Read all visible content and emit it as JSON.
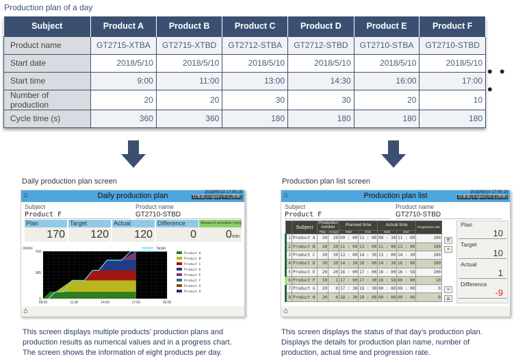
{
  "title": "Production plan of a day",
  "plan_table": {
    "header": [
      "Subject",
      "Product A",
      "Product B",
      "Product C",
      "Product D",
      "Product E",
      "Product F"
    ],
    "rows": [
      {
        "label": "Product name",
        "cells": [
          "GT2715-XTBA",
          "GT2715-XTBD",
          "GT2712-STBA",
          "GT2712-STBD",
          "GT2710-STBA",
          "GT2710-STBD"
        ],
        "align": "c"
      },
      {
        "label": "Start date",
        "cells": [
          "2018/5/10",
          "2018/5/10",
          "2018/5/10",
          "2018/5/10",
          "2018/5/10",
          "2018/5/10"
        ]
      },
      {
        "label": "Start time",
        "cells": [
          "9:00",
          "11:00",
          "13:00",
          "14:30",
          "16:00",
          "17:00"
        ]
      },
      {
        "label": "Number of production",
        "cells": [
          "20",
          "20",
          "30",
          "30",
          "20",
          "10"
        ]
      },
      {
        "label": "Cycle time (s)",
        "cells": [
          "360",
          "360",
          "180",
          "180",
          "180",
          "180"
        ]
      }
    ],
    "more": "• • •"
  },
  "daily": {
    "caption": "Daily production plan screen",
    "title": "Daily production plan",
    "datetime": "2018/05/10  17:05:15",
    "buttons": [
      "日本語",
      "English",
      "中文(简体)"
    ],
    "subject_label": "Subject",
    "subject": "Product F",
    "product_label": "Product name",
    "product": "GT2710-STBD",
    "kpis": [
      {
        "label": "Plan",
        "value": "170"
      },
      {
        "label": "Target",
        "value": "120"
      },
      {
        "label": "Actual",
        "value": "120"
      },
      {
        "label": "Difference",
        "value": "0"
      }
    ],
    "ahead_label": "Ahead of schedule  (min)",
    "ahead_value": "0",
    "ahead_unit": "min",
    "description": [
      "This screen displays multiple products' production plans and",
      "production results as numerical values and in a progress chart.",
      "The screen shows the information of eight products per day."
    ],
    "chart_data": {
      "type": "area",
      "ylabel": "(Units)",
      "ylim": [
        0,
        700
      ],
      "yticks": [
        "0",
        "385",
        "700"
      ],
      "xticks": [
        "08:00",
        "11:00",
        "14:00",
        "17:00",
        "20:00"
      ],
      "xlim_hours": [
        8,
        20
      ],
      "grid": true,
      "target": {
        "name": "Target",
        "color": "#6fd0e8",
        "points": [
          [
            8.5,
            0
          ],
          [
            9.2,
            100
          ],
          [
            10,
            100
          ],
          [
            10.8,
            270
          ],
          [
            12,
            270
          ],
          [
            12.8,
            420
          ],
          [
            13.4,
            420
          ],
          [
            14.2,
            570
          ],
          [
            15.6,
            570
          ],
          [
            16.5,
            700
          ],
          [
            20,
            700
          ]
        ]
      },
      "series": [
        {
          "name": "Product A",
          "color": "#2e7d1e",
          "top": [
            [
              8,
              0
            ],
            [
              8.7,
              100
            ],
            [
              17,
              100
            ]
          ]
        },
        {
          "name": "Product B",
          "color": "#b8b81e",
          "top": [
            [
              8,
              0
            ],
            [
              8.7,
              100
            ],
            [
              9.2,
              100
            ],
            [
              10.8,
              270
            ],
            [
              17,
              270
            ]
          ]
        },
        {
          "name": "Product C",
          "color": "#a0160e",
          "top": [
            [
              8,
              0
            ],
            [
              8.7,
              100
            ],
            [
              9.2,
              100
            ],
            [
              10.8,
              270
            ],
            [
              12,
              270
            ],
            [
              12.8,
              420
            ],
            [
              17,
              420
            ]
          ]
        },
        {
          "name": "Product D",
          "color": "#1f3c8a",
          "top": [
            [
              8,
              0
            ],
            [
              8.7,
              100
            ],
            [
              9.2,
              100
            ],
            [
              10.8,
              270
            ],
            [
              12,
              270
            ],
            [
              12.8,
              420
            ],
            [
              13.4,
              420
            ],
            [
              14.2,
              570
            ],
            [
              17,
              570
            ]
          ]
        },
        {
          "name": "Product E",
          "color": "#7a3a78",
          "top": [
            [
              8,
              0
            ],
            [
              8.7,
              100
            ],
            [
              9.2,
              100
            ],
            [
              10.8,
              270
            ],
            [
              12,
              270
            ],
            [
              12.8,
              420
            ],
            [
              13.4,
              420
            ],
            [
              14.2,
              570
            ],
            [
              15.6,
              570
            ],
            [
              16.3,
              640
            ],
            [
              17,
              700
            ],
            [
              17,
              700
            ]
          ]
        },
        {
          "name": "Product F",
          "color": "#2e6a8c",
          "top": []
        },
        {
          "name": "Product G",
          "color": "#8a4a10",
          "top": []
        },
        {
          "name": "Product H",
          "color": "#3a2670",
          "top": []
        }
      ]
    }
  },
  "list": {
    "caption": "Production plan list screen",
    "title": "Production plan list",
    "datetime": "2018/05/10  17:05:15",
    "buttons": [
      "日本語",
      "English",
      "中文(简体)"
    ],
    "subject_label": "Subject",
    "subject": "Product F",
    "product_label": "Product name",
    "product": "GT2710-STBD",
    "headers": {
      "subject": "Subject",
      "prod": "Production number",
      "plan": "Plan",
      "actual": "Actual",
      "planned": "Planned time",
      "actual_time": "Actual time",
      "start": "Start",
      "end": "End",
      "rate": "Progression rate"
    },
    "rows": [
      [
        "1",
        "Product A",
        "20",
        "20",
        "09 : 00",
        "11 : 00",
        "08 : 30",
        "11 : 00",
        "100"
      ],
      [
        "2",
        "Product B",
        "20",
        "20",
        "11 : 00",
        "13 : 00",
        "11 : 00",
        "13 : 00",
        "100"
      ],
      [
        "3",
        "Product C",
        "30",
        "30",
        "13 : 00",
        "14 : 30",
        "13 : 00",
        "14 : 30",
        "100"
      ],
      [
        "4",
        "Product D",
        "30",
        "30",
        "14 : 30",
        "16 : 00",
        "14 : 30",
        "16 : 00",
        "100"
      ],
      [
        "5",
        "Product E",
        "20",
        "20",
        "16 : 00",
        "17 : 00",
        "16 : 00",
        "16 : 58",
        "100"
      ],
      [
        "6",
        "Product F",
        "10",
        "1",
        "17 : 00",
        "17 : 30",
        "16 : 58",
        "00 : 00",
        "10"
      ],
      [
        "7",
        "Product G",
        "20",
        "0",
        "17 : 30",
        "18 : 30",
        "00 : 00",
        "00 : 00",
        "0"
      ],
      [
        "8",
        "Product H",
        "20",
        "0",
        "18 : 30",
        "19 : 00",
        "00 : 00",
        "00 : 00",
        "0"
      ]
    ],
    "side": [
      {
        "label": "Plan",
        "value": "10"
      },
      {
        "label": "Target",
        "value": "10"
      },
      {
        "label": "Actual",
        "value": "1"
      },
      {
        "label": "Difference",
        "value": "-9",
        "color": "#e02020"
      }
    ],
    "description": [
      "This screen displays the status of that day's production plan.",
      "Displays the details for production plan name, number of",
      "production, actual time and progression rate."
    ]
  }
}
